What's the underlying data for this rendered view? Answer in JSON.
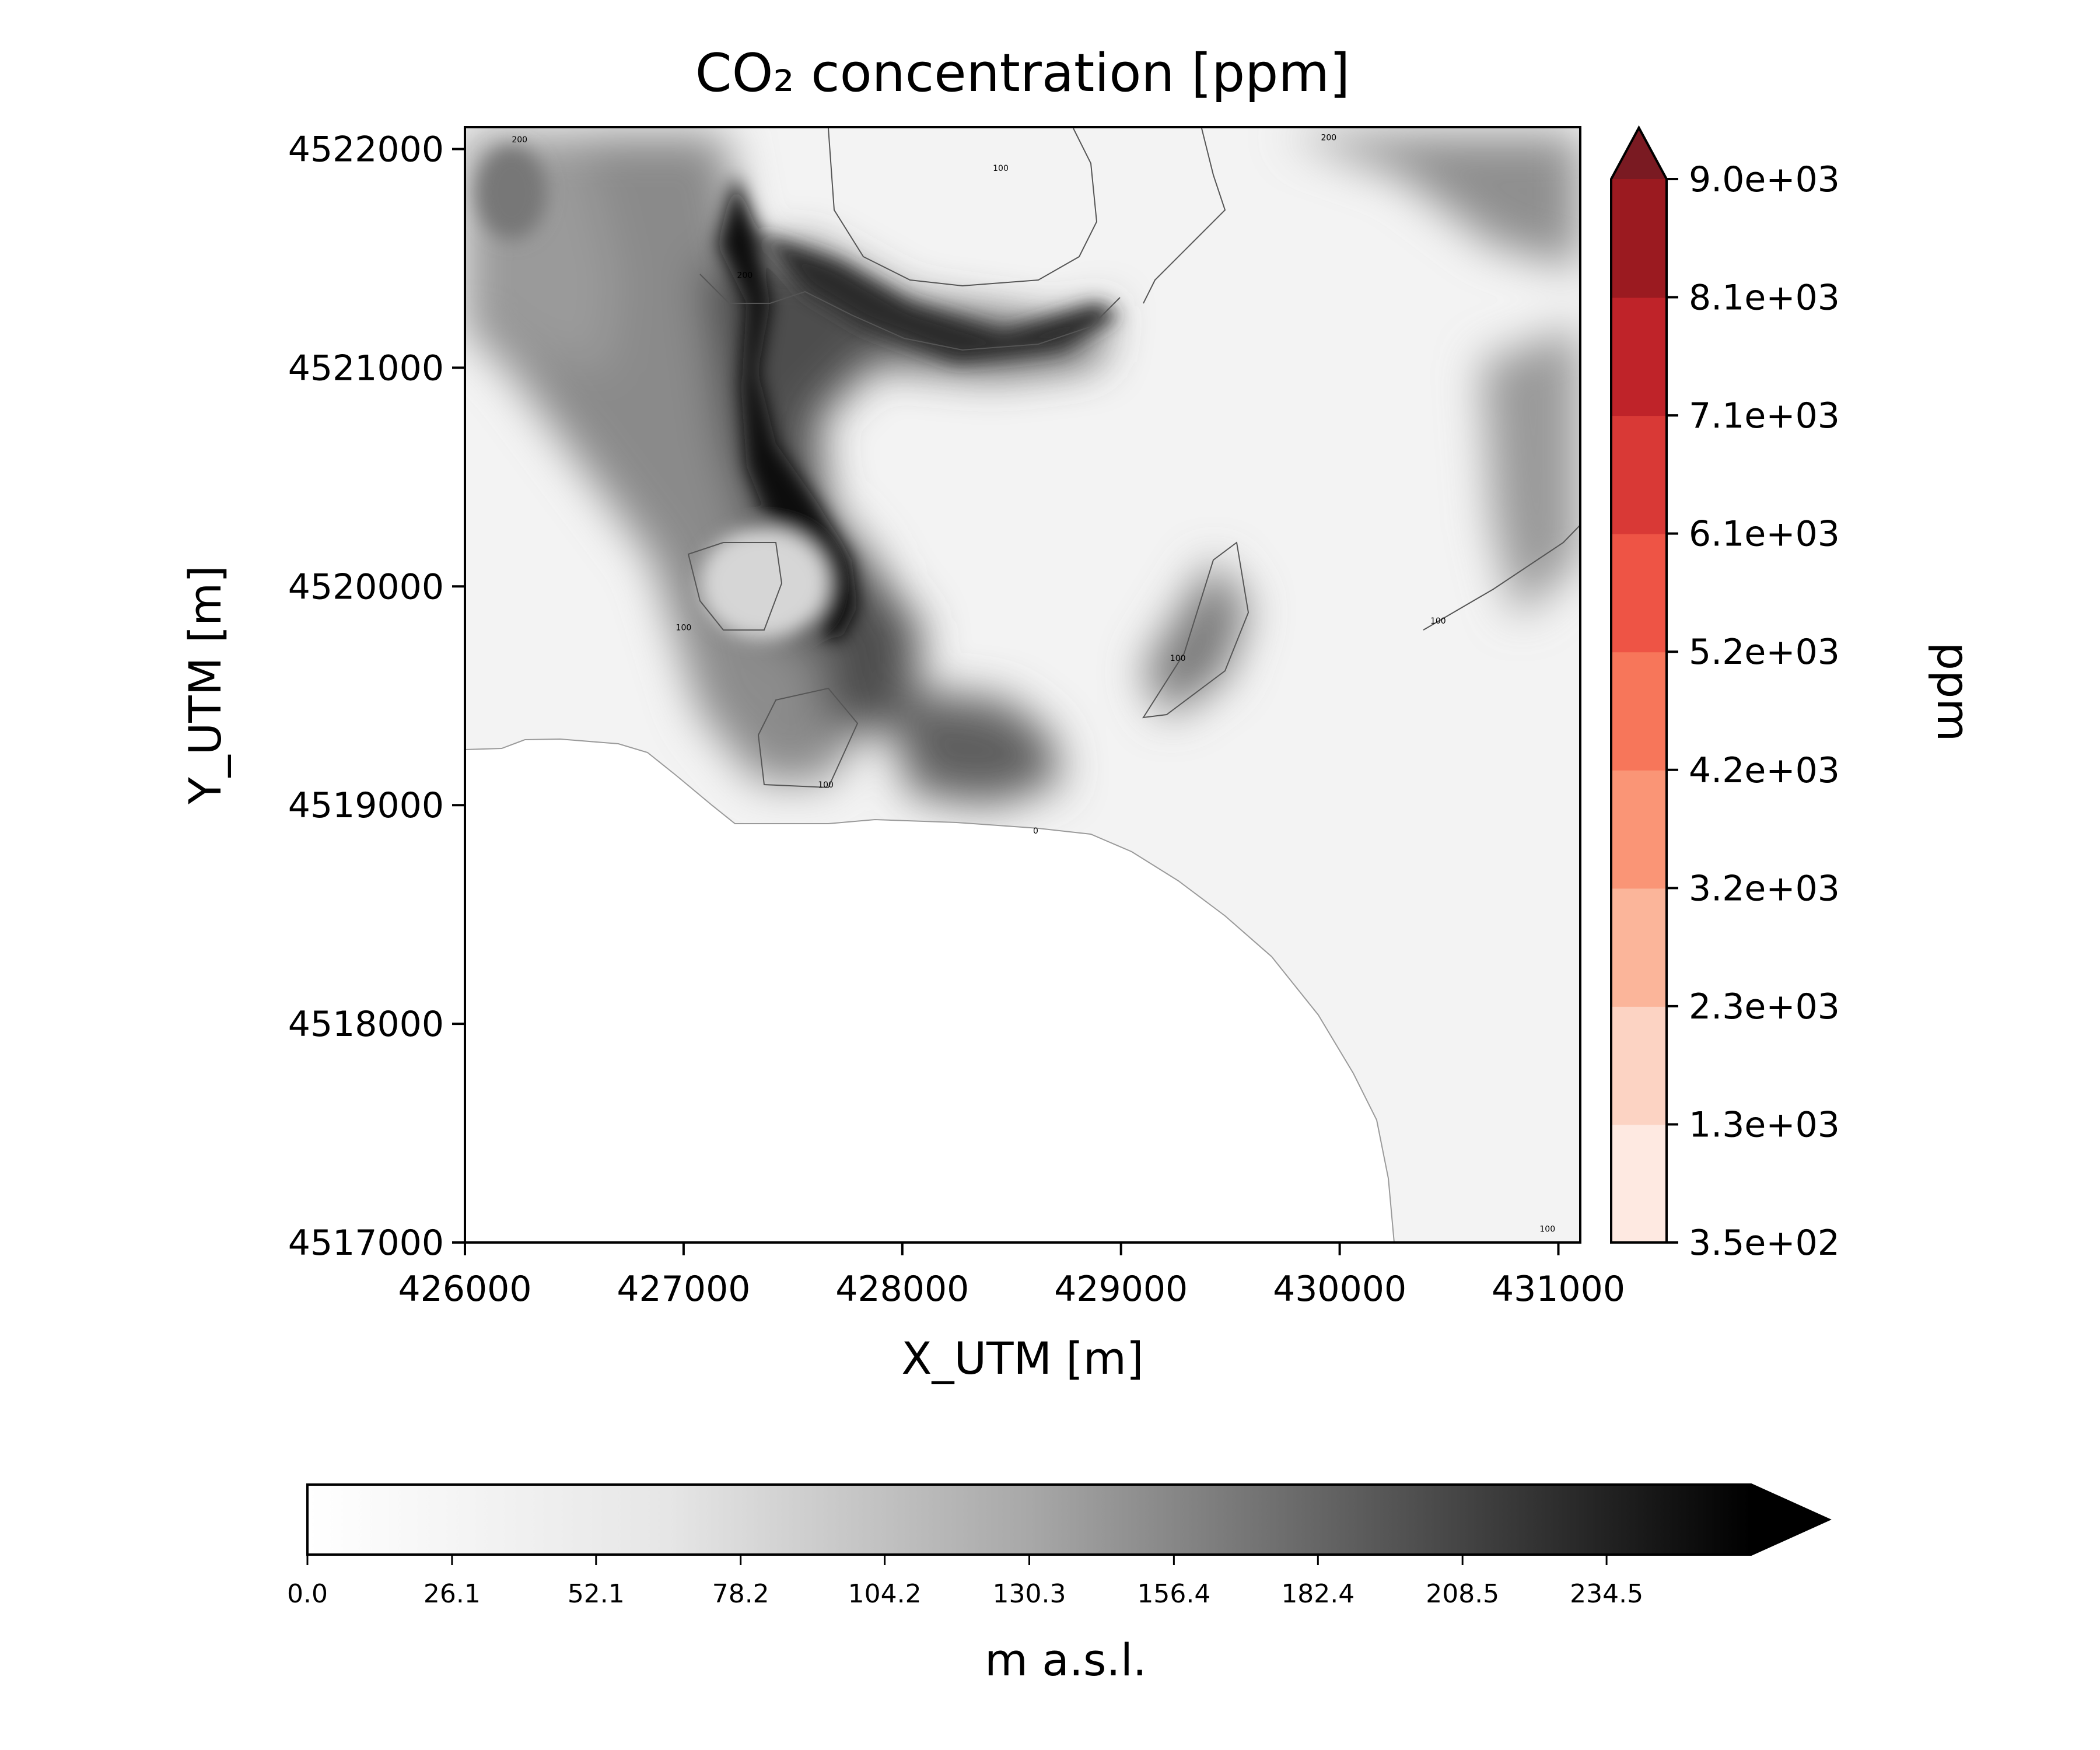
{
  "chart_data": {
    "type": "heatmap",
    "title": "CO₂ concentration [ppm]",
    "xlabel": "X_UTM [m]",
    "ylabel": "Y_UTM [m]",
    "xlim": [
      426000,
      431100
    ],
    "ylim": [
      4517000,
      4522100
    ],
    "xticks": [
      426000,
      427000,
      428000,
      429000,
      430000,
      431000
    ],
    "yticks": [
      4517000,
      4518000,
      4519000,
      4520000,
      4521000,
      4522000
    ],
    "grid": false,
    "background_field": {
      "description": "terrain elevation shaded in greyscale",
      "colormap": "greys",
      "colorbar_label": "m a.s.l.",
      "colorbar_orientation": "horizontal",
      "range": [
        0.0,
        260.6
      ],
      "extend": "max",
      "tick_labels": [
        "0.0",
        "26.1",
        "52.1",
        "78.2",
        "104.2",
        "130.3",
        "156.4",
        "182.4",
        "208.5",
        "234.5"
      ],
      "contour_labels": [
        {
          "text": "200",
          "x": 426250,
          "y": 4522030
        },
        {
          "text": "200",
          "x": 427280,
          "y": 4521410
        },
        {
          "text": "100",
          "x": 428450,
          "y": 4521900
        },
        {
          "text": "200",
          "x": 429950,
          "y": 4522040
        },
        {
          "text": "100",
          "x": 427000,
          "y": 4519800
        },
        {
          "text": "100",
          "x": 429260,
          "y": 4519660
        },
        {
          "text": "100",
          "x": 430450,
          "y": 4519830
        },
        {
          "text": "100",
          "x": 427650,
          "y": 4519080
        },
        {
          "text": "0",
          "x": 428610,
          "y": 4518870
        },
        {
          "text": "100",
          "x": 430950,
          "y": 4517050
        }
      ]
    },
    "colorbar": {
      "label": "ppm",
      "orientation": "vertical",
      "extend": "max",
      "tick_labels": [
        "3.5e+02",
        "1.3e+03",
        "2.3e+03",
        "3.2e+03",
        "4.2e+03",
        "5.2e+03",
        "6.1e+03",
        "7.1e+03",
        "8.1e+03",
        "9.0e+03"
      ],
      "levels": [
        350,
        1300,
        2300,
        3200,
        4200,
        5200,
        6100,
        7100,
        8100,
        9000
      ],
      "colors": [
        "#fee9e1",
        "#fcd3c3",
        "#fbb59a",
        "#fa9576",
        "#f7765a",
        "#ee5445",
        "#d93936",
        "#bf2329",
        "#9b1a20",
        "#7a1a22"
      ]
    }
  }
}
